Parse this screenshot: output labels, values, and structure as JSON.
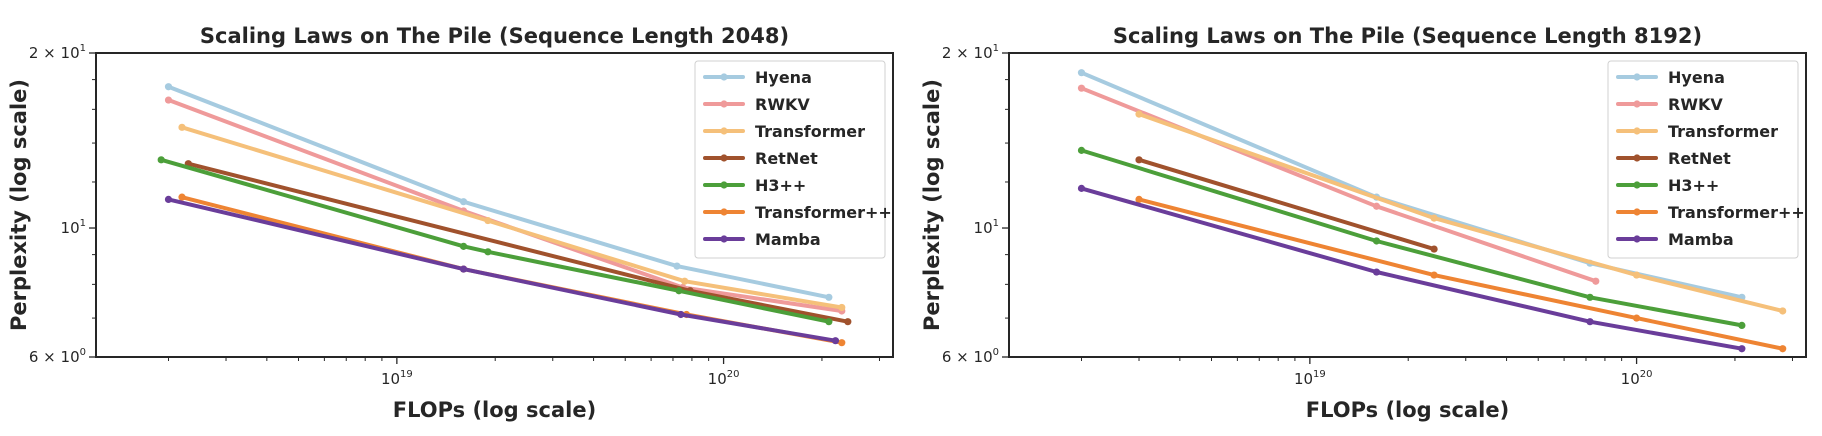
{
  "chart_data": [
    {
      "type": "line",
      "title": "Scaling Laws on The Pile (Sequence Length 2048)",
      "xlabel": "FLOPs (log scale)",
      "ylabel": "Perplexity (log scale)",
      "xscale": "log",
      "yscale": "log",
      "xlim": [
        1.2e+18,
        3.3e+20
      ],
      "ylim": [
        6,
        20
      ],
      "x_tick_labels": [
        {
          "value": 1e+19,
          "base": "10",
          "exp": "19"
        },
        {
          "value": 1e+20,
          "base": "10",
          "exp": "20"
        }
      ],
      "y_tick_labels": [
        {
          "value": 6,
          "base": "6 × 10",
          "exp": "0"
        },
        {
          "value": 10,
          "base": "10",
          "exp": "1"
        },
        {
          "value": 20,
          "base": "2 × 10",
          "exp": "1"
        }
      ],
      "legend_position": "top-right",
      "series": [
        {
          "name": "Hyena",
          "color": "#a6cbe0",
          "x": [
            2e+18,
            1.6e+19,
            7.2e+19,
            2.1e+20
          ],
          "y": [
            17.5,
            11.1,
            8.6,
            7.6
          ]
        },
        {
          "name": "RWKV",
          "color": "#ef9a9a",
          "x": [
            2e+18,
            1.6e+19,
            7.5e+19,
            2.3e+20
          ],
          "y": [
            16.6,
            10.7,
            7.9,
            7.2
          ]
        },
        {
          "name": "Transformer",
          "color": "#f5c07a",
          "x": [
            2.2e+18,
            1.9e+19,
            7.6e+19,
            2.3e+20
          ],
          "y": [
            14.9,
            10.3,
            8.1,
            7.3
          ]
        },
        {
          "name": "RetNet",
          "color": "#a0522d",
          "x": [
            2.3e+18,
            7.9e+19,
            2.4e+20
          ],
          "y": [
            12.9,
            7.8,
            6.9
          ]
        },
        {
          "name": "H3++",
          "color": "#4c9f3a",
          "x": [
            1.9e+18,
            1.6e+19,
            1.9e+19,
            7.3e+19,
            2.1e+20
          ],
          "y": [
            13.1,
            9.3,
            9.1,
            7.8,
            6.9
          ]
        },
        {
          "name": "Transformer++",
          "color": "#ee8433",
          "x": [
            2.2e+18,
            1.6e+19,
            7.7e+19,
            2.3e+20
          ],
          "y": [
            11.3,
            8.5,
            7.1,
            6.35
          ]
        },
        {
          "name": "Mamba",
          "color": "#6a3d9a",
          "x": [
            2e+18,
            1.6e+19,
            7.4e+19,
            2.2e+20
          ],
          "y": [
            11.2,
            8.5,
            7.1,
            6.4
          ]
        }
      ]
    },
    {
      "type": "line",
      "title": "Scaling Laws on The Pile (Sequence Length 8192)",
      "xlabel": "FLOPs (log scale)",
      "ylabel": "Perplexity (log scale)",
      "xscale": "log",
      "yscale": "log",
      "xlim": [
        1.2e+18,
        3.3e+20
      ],
      "ylim": [
        6,
        20
      ],
      "x_tick_labels": [
        {
          "value": 1e+19,
          "base": "10",
          "exp": "19"
        },
        {
          "value": 1e+20,
          "base": "10",
          "exp": "20"
        }
      ],
      "y_tick_labels": [
        {
          "value": 6,
          "base": "6 × 10",
          "exp": "0"
        },
        {
          "value": 10,
          "base": "10",
          "exp": "1"
        },
        {
          "value": 20,
          "base": "2 × 10",
          "exp": "1"
        }
      ],
      "legend_position": "top-right",
      "series": [
        {
          "name": "Hyena",
          "color": "#a6cbe0",
          "x": [
            2e+18,
            1.6e+19,
            7.2e+19,
            2.1e+20
          ],
          "y": [
            18.5,
            11.3,
            8.7,
            7.6
          ]
        },
        {
          "name": "RWKV",
          "color": "#ef9a9a",
          "x": [
            2e+18,
            1.6e+19,
            7.5e+19
          ],
          "y": [
            17.4,
            10.9,
            8.1
          ]
        },
        {
          "name": "Transformer",
          "color": "#f5c07a",
          "x": [
            3e+18,
            2.4e+19,
            1e+20,
            2.8e+20
          ],
          "y": [
            15.7,
            10.4,
            8.3,
            7.2
          ]
        },
        {
          "name": "RetNet",
          "color": "#a0522d",
          "x": [
            3e+18,
            2.4e+19
          ],
          "y": [
            13.1,
            9.2
          ]
        },
        {
          "name": "H3++",
          "color": "#4c9f3a",
          "x": [
            2e+18,
            1.6e+19,
            7.2e+19,
            2.1e+20
          ],
          "y": [
            13.6,
            9.5,
            7.6,
            6.8
          ]
        },
        {
          "name": "Transformer++",
          "color": "#ee8433",
          "x": [
            3e+18,
            2.4e+19,
            1e+20,
            2.8e+20
          ],
          "y": [
            11.2,
            8.3,
            7.0,
            6.2
          ]
        },
        {
          "name": "Mamba",
          "color": "#6a3d9a",
          "x": [
            2e+18,
            1.6e+19,
            7.2e+19,
            2.1e+20
          ],
          "y": [
            11.7,
            8.4,
            6.9,
            6.2
          ]
        }
      ]
    }
  ]
}
